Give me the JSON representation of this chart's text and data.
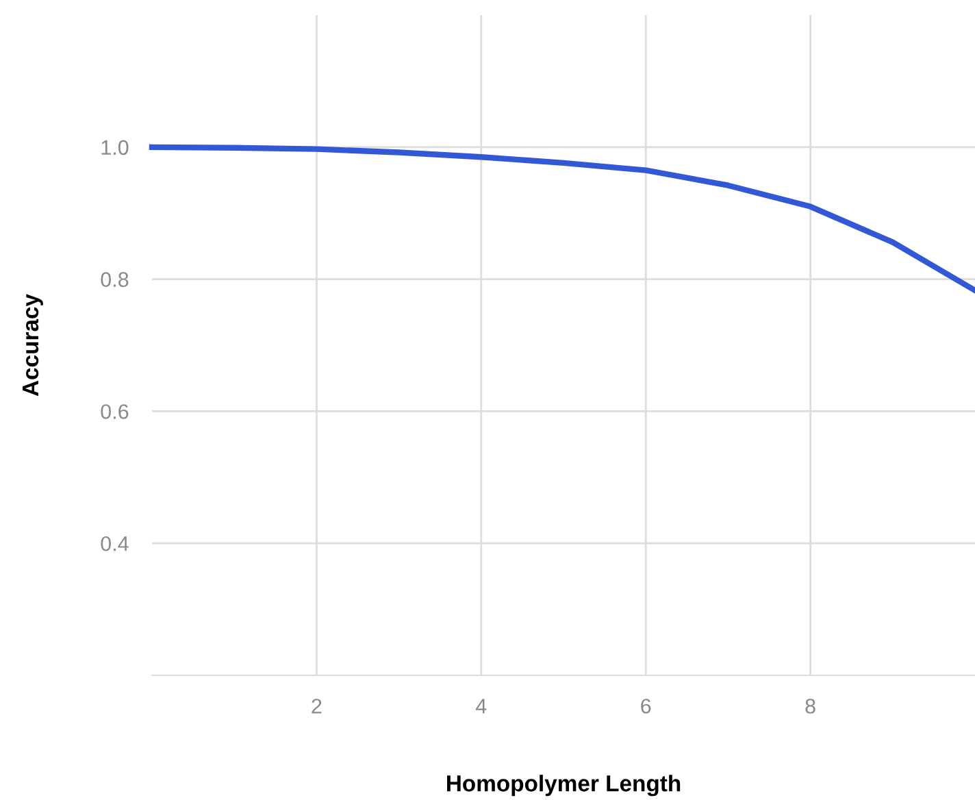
{
  "chart_data": {
    "type": "line",
    "xlabel": "Homopolymer Length",
    "ylabel": "Accuracy",
    "x": [
      0,
      1,
      2,
      3,
      4,
      5,
      6,
      7,
      8,
      9,
      10
    ],
    "series": [
      {
        "color": "#3358d6",
        "values": [
          1.0,
          0.999,
          0.997,
          0.992,
          0.985,
          0.976,
          0.965,
          0.942,
          0.91,
          0.856,
          0.783
        ]
      }
    ],
    "xlim": [
      0,
      10
    ],
    "ylim": [
      0.2,
      1.2
    ],
    "xticks": [
      2,
      4,
      6,
      8
    ],
    "yticks": [
      0.4,
      0.6,
      0.8,
      {
        "value": 1.0,
        "label": "1.0"
      }
    ],
    "grid": true,
    "marker": "none",
    "line_style": "solid"
  }
}
